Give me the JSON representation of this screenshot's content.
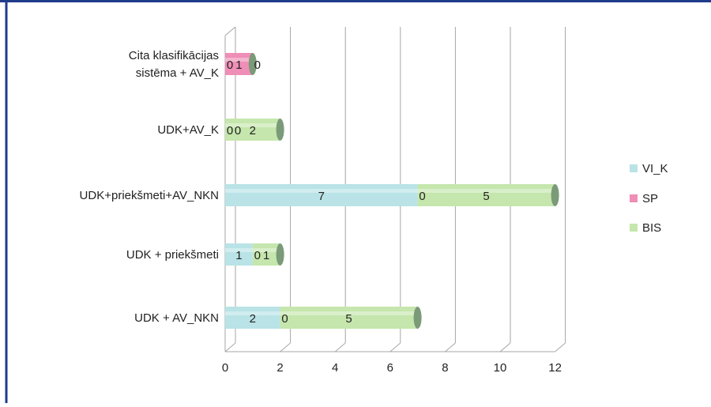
{
  "colors": {
    "frame": "#1f3b8c",
    "grid": "#a6a6a6",
    "axis_text": "#222222",
    "VI_K": "#b9e3e6",
    "SP": "#ef8eb6",
    "BIS": "#c5e6ad",
    "cap": "#7a9a78"
  },
  "chart_data": {
    "type": "bar",
    "orientation": "horizontal",
    "stacked": true,
    "three_d": true,
    "categories": [
      "Cita klasifikācijas sistēma + AV_K",
      "UDK+AV_K",
      "UDK+priekšmeti+AV_NKN",
      "UDK + priekšmeti",
      "UDK + AV_NKN"
    ],
    "category_lines": [
      [
        "Cita klasifikācijas",
        "sistēma + AV_K"
      ],
      [
        "UDK+AV_K"
      ],
      [
        "UDK+priekšmeti+AV_NKN"
      ],
      [
        "UDK + priekšmeti"
      ],
      [
        "UDK + AV_NKN"
      ]
    ],
    "series": [
      {
        "name": "VI_K",
        "values": [
          0,
          0,
          7,
          1,
          2
        ]
      },
      {
        "name": "SP",
        "values": [
          1,
          0,
          0,
          0,
          0
        ]
      },
      {
        "name": "BIS",
        "values": [
          0,
          2,
          5,
          1,
          5
        ]
      }
    ],
    "x_ticks": [
      "0",
      "2",
      "4",
      "6",
      "8",
      "10",
      "12"
    ],
    "xlim": [
      0,
      12
    ],
    "grid": true,
    "legend_position": "right",
    "title": "",
    "xlabel": "",
    "ylabel": ""
  }
}
